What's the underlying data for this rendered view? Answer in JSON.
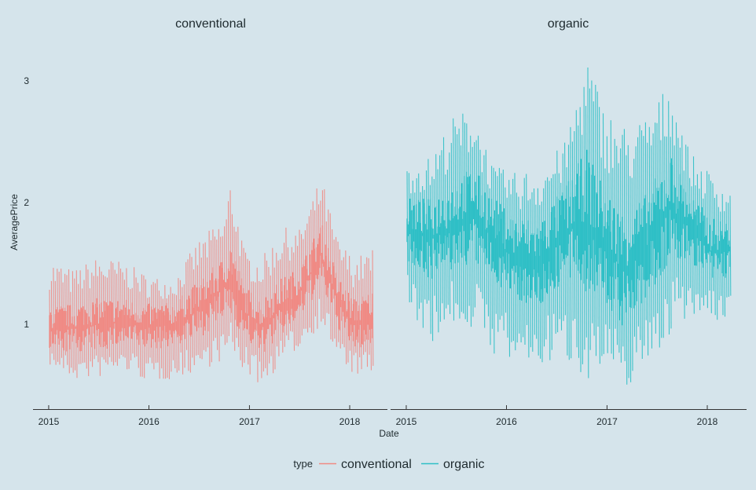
{
  "chart_data": {
    "type": "line",
    "facets": [
      "conventional",
      "organic"
    ],
    "xlabel": "Date",
    "ylabel": "AveragePrice",
    "x_ticks": [
      "2015",
      "2016",
      "2017",
      "2018"
    ],
    "y_ticks": [
      "1",
      "2",
      "3"
    ],
    "xlim": [
      "2015-01-04",
      "2018-03-25"
    ],
    "ylim": [
      0.44,
      3.25
    ],
    "grid": false,
    "legend": {
      "title": "type",
      "position": "bottom",
      "entries": [
        "conventional",
        "organic"
      ]
    },
    "colors": {
      "conventional": "#f08a84",
      "organic": "#2ebfc6",
      "background": "#d5e4eb",
      "axis": "#333333"
    },
    "series": [
      {
        "name": "conventional",
        "facet": "conventional",
        "color": "#f08a84",
        "envelope": [
          {
            "x": "2015-01-04",
            "low": 0.66,
            "mid": 0.96,
            "high": 1.55
          },
          {
            "x": "2015-04-01",
            "low": 0.54,
            "mid": 0.97,
            "high": 1.45
          },
          {
            "x": "2015-07-01",
            "low": 0.56,
            "mid": 1.0,
            "high": 1.56
          },
          {
            "x": "2015-10-01",
            "low": 0.62,
            "mid": 1.02,
            "high": 1.52
          },
          {
            "x": "2016-01-01",
            "low": 0.52,
            "mid": 0.98,
            "high": 1.4
          },
          {
            "x": "2016-04-01",
            "low": 0.55,
            "mid": 1.0,
            "high": 1.38
          },
          {
            "x": "2016-07-01",
            "low": 0.62,
            "mid": 1.12,
            "high": 1.7
          },
          {
            "x": "2016-10-01",
            "low": 0.7,
            "mid": 1.3,
            "high": 1.88
          },
          {
            "x": "2016-10-25",
            "low": 0.74,
            "mid": 1.38,
            "high": 2.22
          },
          {
            "x": "2016-12-15",
            "low": 0.6,
            "mid": 1.1,
            "high": 1.6
          },
          {
            "x": "2017-02-15",
            "low": 0.48,
            "mid": 0.98,
            "high": 1.55
          },
          {
            "x": "2017-05-01",
            "low": 0.7,
            "mid": 1.15,
            "high": 1.8
          },
          {
            "x": "2017-07-01",
            "low": 0.8,
            "mid": 1.25,
            "high": 1.78
          },
          {
            "x": "2017-09-20",
            "low": 1.0,
            "mid": 1.58,
            "high": 2.22
          },
          {
            "x": "2017-11-15",
            "low": 0.7,
            "mid": 1.2,
            "high": 1.72
          },
          {
            "x": "2018-01-15",
            "low": 0.58,
            "mid": 1.0,
            "high": 1.55
          },
          {
            "x": "2018-03-25",
            "low": 0.56,
            "mid": 1.05,
            "high": 1.62
          }
        ]
      },
      {
        "name": "organic",
        "facet": "organic",
        "color": "#2ebfc6",
        "envelope": [
          {
            "x": "2015-01-04",
            "low": 1.15,
            "mid": 1.78,
            "high": 2.32
          },
          {
            "x": "2015-04-01",
            "low": 0.85,
            "mid": 1.7,
            "high": 2.38
          },
          {
            "x": "2015-06-15",
            "low": 1.0,
            "mid": 1.8,
            "high": 2.7
          },
          {
            "x": "2015-09-01",
            "low": 0.95,
            "mid": 1.9,
            "high": 2.8
          },
          {
            "x": "2015-11-15",
            "low": 0.75,
            "mid": 1.7,
            "high": 2.3
          },
          {
            "x": "2016-02-01",
            "low": 0.65,
            "mid": 1.55,
            "high": 2.25
          },
          {
            "x": "2016-05-01",
            "low": 0.65,
            "mid": 1.5,
            "high": 2.3
          },
          {
            "x": "2016-08-01",
            "low": 0.7,
            "mid": 1.75,
            "high": 2.5
          },
          {
            "x": "2016-10-20",
            "low": 0.55,
            "mid": 1.85,
            "high": 3.25
          },
          {
            "x": "2016-12-20",
            "low": 0.6,
            "mid": 1.65,
            "high": 2.8
          },
          {
            "x": "2017-03-01",
            "low": 0.44,
            "mid": 1.45,
            "high": 2.65
          },
          {
            "x": "2017-05-15",
            "low": 0.65,
            "mid": 1.6,
            "high": 2.7
          },
          {
            "x": "2017-08-20",
            "low": 0.9,
            "mid": 1.95,
            "high": 3.0
          },
          {
            "x": "2017-11-01",
            "low": 1.1,
            "mid": 1.8,
            "high": 2.4
          },
          {
            "x": "2018-01-15",
            "low": 1.0,
            "mid": 1.6,
            "high": 2.25
          },
          {
            "x": "2018-03-25",
            "low": 1.05,
            "mid": 1.62,
            "high": 2.1
          }
        ]
      }
    ]
  }
}
